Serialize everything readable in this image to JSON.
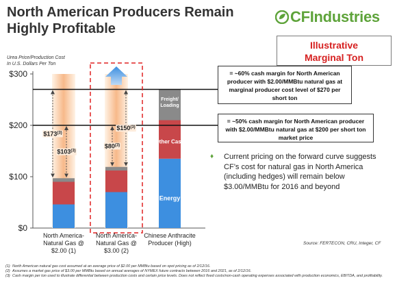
{
  "slide": {
    "title_line1": "North American Producers Remain",
    "title_line2": "Highly Profitable",
    "logo_text": "CFIndustries",
    "illustrative_line1": "Illustrative",
    "illustrative_line2": "Marginal Ton",
    "axis_caption_line1": "Urea Price/Production Cost",
    "axis_caption_line2": "In U.S. Dollars Per Ton",
    "callout_1": "= ~60% cash margin for North American producer with $2.00/MMBtu natural gas at marginal producer cost level of $270 per short ton",
    "callout_2": "= ~50% cash margin for North American producer with $2.00/MMBtu natural gas at $200 per short ton market price",
    "bullet": "Current pricing on the forward curve suggests CF’s cost for natural gas in North America (including hedges) will remain below $3.00/MMBtu for 2016 and beyond",
    "source": "Source: FERTECON, CRU, Integer, CF",
    "footnotes": [
      {
        "n": "(1)",
        "text": "North American natural gas cost assumed at an average price of $2.00 per MMBtu based on spot pricing as of 2/12/16."
      },
      {
        "n": "(2)",
        "text": "Assumes a market gas price of $3.00 per MMBtu based on annual averages of NYMEX future contracts between 2016 and 2021, as of 2/12/16."
      },
      {
        "n": "(3)",
        "text": "Cash margin per ton used to illustrate differential between production costs and certain price levels. Does not reflect fixed costs/non-cash operating expenses associated with production economics, EBITDA, and profitability."
      }
    ],
    "colors": {
      "blue_energy": "#3d8fe0",
      "red_other": "#c8474a",
      "grey_freight": "#8a8a8a",
      "margin_gradient": "#f7b98a",
      "accent_green": "#5ea33a",
      "illustrative_red": "#d62020"
    }
  },
  "chart_data": {
    "type": "bar",
    "stacked": true,
    "ylabel": "",
    "ylim": [
      0,
      300
    ],
    "yticks": [
      "$0",
      "$100",
      "$200",
      "$300"
    ],
    "categories": [
      [
        "North America-",
        "Natural Gas @",
        "$2.00 (1)"
      ],
      [
        "North America-",
        "Natural Gas @",
        "$3.00 (2)"
      ],
      [
        "Chinese Anthracite",
        "Producer (High)"
      ]
    ],
    "series": [
      {
        "key": "energy",
        "values": [
          46,
          70,
          135
        ],
        "color": "#3d8fe0"
      },
      {
        "key": "other",
        "values": [
          44,
          42,
          75
        ],
        "color": "#c8474a"
      },
      {
        "key": "freight",
        "values": [
          7,
          7,
          60
        ],
        "color": "#8a8a8a"
      }
    ],
    "segment_labels": {
      "energy": "Energy",
      "other": "Other Cash",
      "freight": "Freight/ Loading"
    },
    "reference_lines": [
      270,
      200
    ],
    "margin_annotations": [
      {
        "bar": 0,
        "label": "$173",
        "sup": "(3)",
        "from": 97,
        "to": 270
      },
      {
        "bar": 0,
        "label": "$103",
        "sup": "(3)",
        "from": 97,
        "to": 200
      },
      {
        "bar": 1,
        "label": "$80",
        "sup": "(3)",
        "from": 119,
        "to": 200
      },
      {
        "bar": 1,
        "label": "$150",
        "sup": "(3)",
        "from": 119,
        "to": 270
      }
    ]
  }
}
